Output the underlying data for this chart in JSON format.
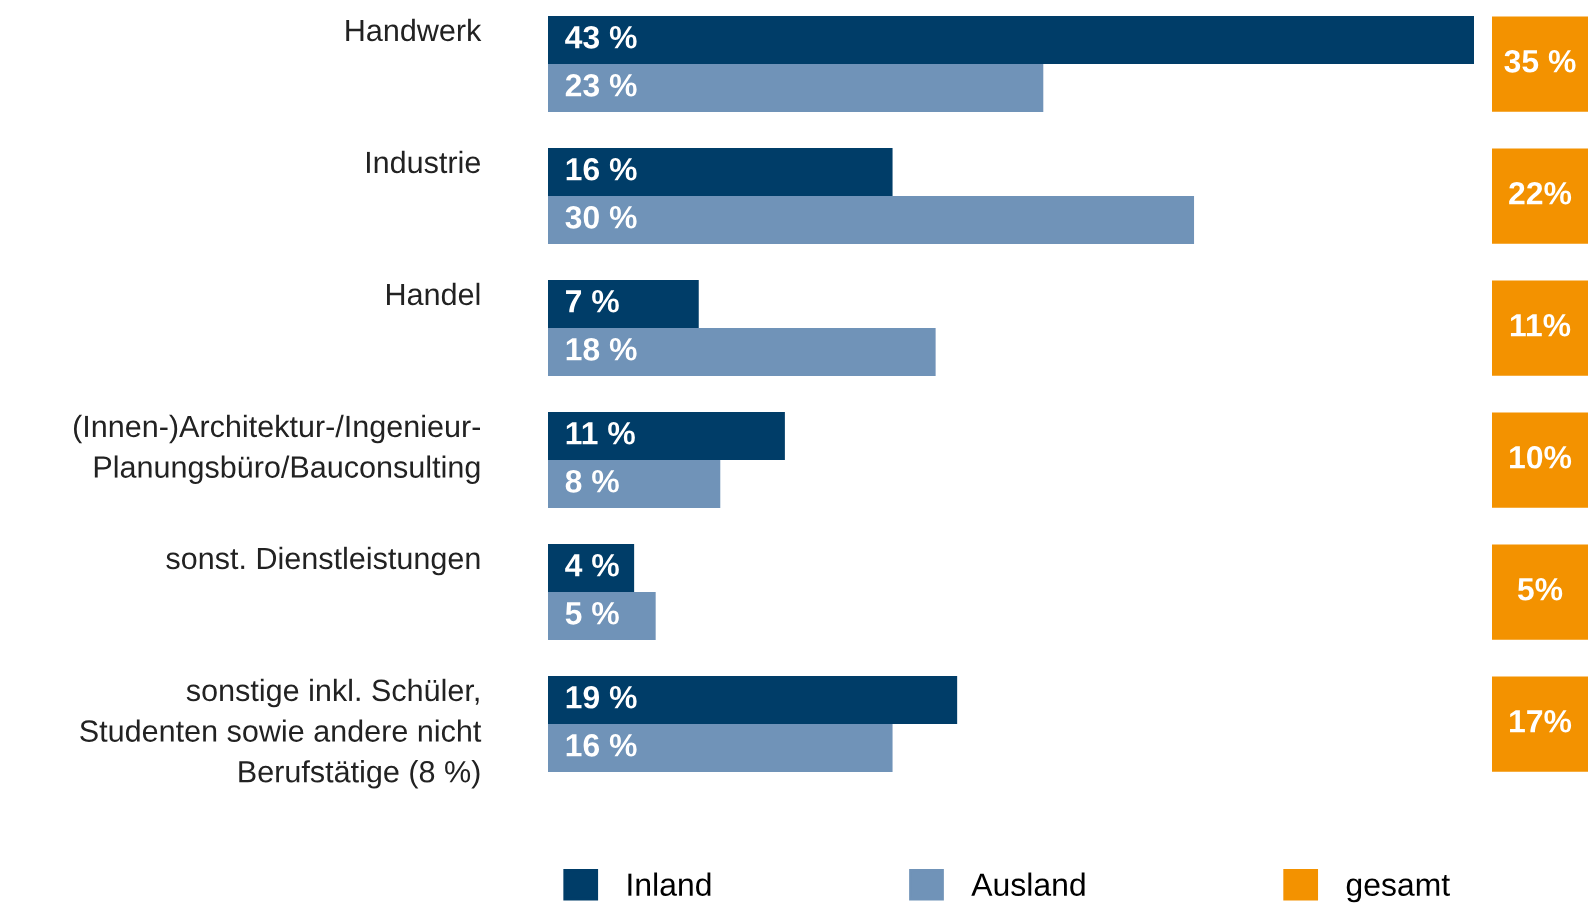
{
  "chart_data": [
    {
      "type": "bar",
      "orientation": "horizontal",
      "legend": "bottom",
      "categories": [
        "Handwerk",
        "Industrie",
        "Handel",
        "(Innen-)Architektur-/Ingenieur-\nPlanungsbüro/Bauconsulting",
        "sonst. Dienstleistungen",
        "sonstige inkl. Schüler,\nStudenten sowie andere nicht\nBerufstätige (8 %)"
      ],
      "series": [
        {
          "name": "Inland",
          "color": "#003d68",
          "values": [
            43,
            16,
            7,
            11,
            4,
            19
          ],
          "value_labels": [
            "43 %",
            "16 %",
            "7 %",
            "11 %",
            "4 %",
            "19 %"
          ]
        },
        {
          "name": "Ausland",
          "color": "#7093b8",
          "values": [
            23,
            30,
            18,
            8,
            5,
            16
          ],
          "value_labels": [
            "23 %",
            "30 %",
            "18 %",
            "8 %",
            "5 %",
            "16 %"
          ]
        }
      ]
    },
    {
      "type": "other",
      "legend": "bottom",
      "series": [
        {
          "name": "gesamt",
          "color": "#f39200",
          "values": [
            35,
            22,
            11,
            10,
            5,
            17
          ],
          "value_labels": [
            "35 %",
            "22%",
            "11%",
            "10%",
            "5%",
            "17%"
          ]
        }
      ]
    }
  ]
}
